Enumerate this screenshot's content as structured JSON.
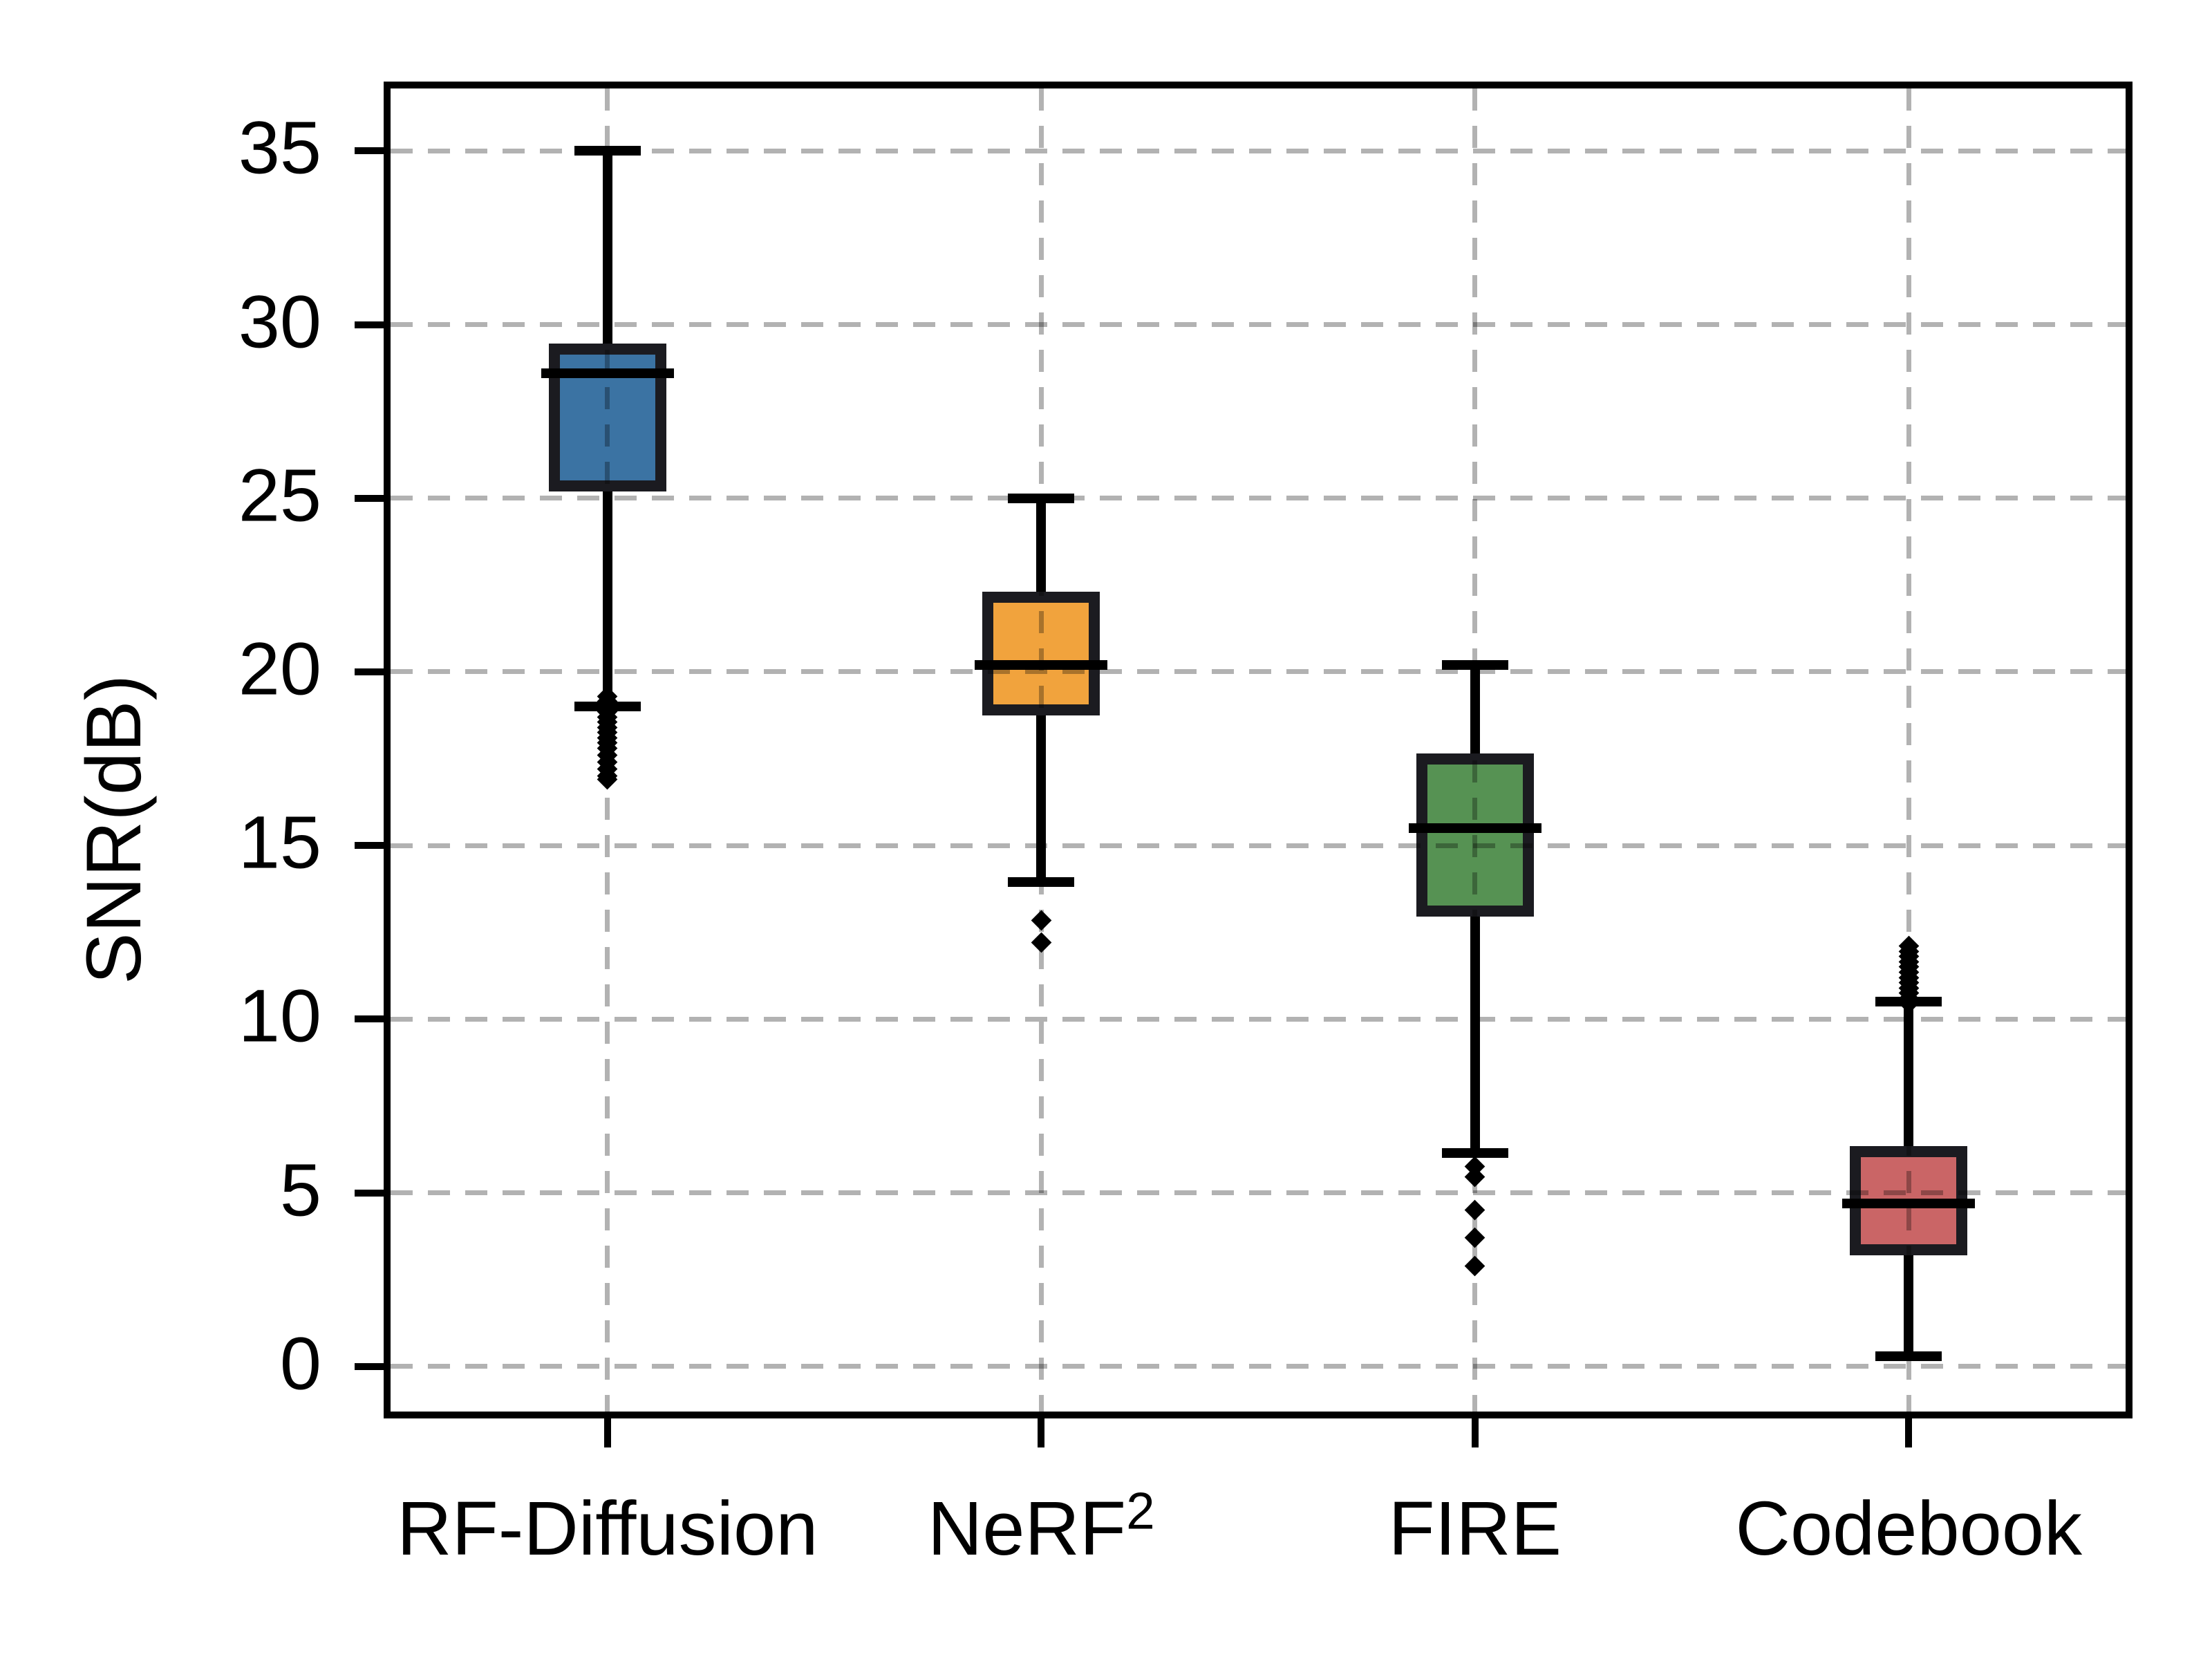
{
  "figure": {
    "background": "#ffffff",
    "spine_color": "#000000",
    "grid_style": "dashed",
    "grid_alpha": 0.3
  },
  "chart_data": {
    "type": "boxplot",
    "title": "",
    "xlabel": "",
    "ylabel": "SNR(dB)",
    "ylim": [
      -1.3,
      36.8
    ],
    "yticks": [
      0,
      5,
      10,
      15,
      20,
      25,
      30,
      35
    ],
    "ytick_labels": [
      "0",
      "5",
      "10",
      "15",
      "20",
      "25",
      "30",
      "35"
    ],
    "grid": "both-dashed",
    "legend": "none",
    "categories": [
      {
        "label": "RF-Diffusion",
        "sup": ""
      },
      {
        "label": "NeRF",
        "sup": "2"
      },
      {
        "label": "FIRE",
        "sup": ""
      },
      {
        "label": "Codebook",
        "sup": ""
      }
    ],
    "series": [
      {
        "name": "RF-Diffusion",
        "color": "#3B73A3",
        "whisker_high": 35.0,
        "q3": 29.45,
        "median": 28.6,
        "q1": 25.2,
        "whisker_low": 19.0,
        "outliers": [
          19.3,
          19.15,
          19.0,
          18.85,
          18.7,
          18.55,
          18.4,
          18.25,
          18.1,
          17.95,
          17.8,
          17.6,
          17.4,
          17.2,
          17.0,
          16.9
        ]
      },
      {
        "name": "NeRF2",
        "color": "#F1A33D",
        "whisker_high": 25.0,
        "q3": 22.3,
        "median": 20.2,
        "q1": 18.75,
        "whisker_low": 13.95,
        "outliers": [
          12.85,
          12.2
        ]
      },
      {
        "name": "FIRE",
        "color": "#569253",
        "whisker_high": 20.2,
        "q3": 17.65,
        "median": 15.5,
        "q1": 12.95,
        "whisker_low": 6.15,
        "outliers": [
          5.75,
          5.45,
          4.5,
          3.7,
          2.9
        ]
      },
      {
        "name": "Codebook",
        "color": "#CA6566",
        "whisker_high": 10.5,
        "q3": 6.35,
        "median": 4.7,
        "q1": 3.2,
        "whisker_low": 0.3,
        "outliers": [
          12.1,
          11.95,
          11.8,
          11.65,
          11.5,
          11.35,
          11.2,
          11.05,
          10.9,
          10.75,
          10.6,
          10.45
        ]
      }
    ],
    "box_edge_color": "#1b1b20",
    "median_color": "#000000",
    "whisker_color": "#000000",
    "outlier_marker": "diamond",
    "outlier_color": "#000000"
  }
}
